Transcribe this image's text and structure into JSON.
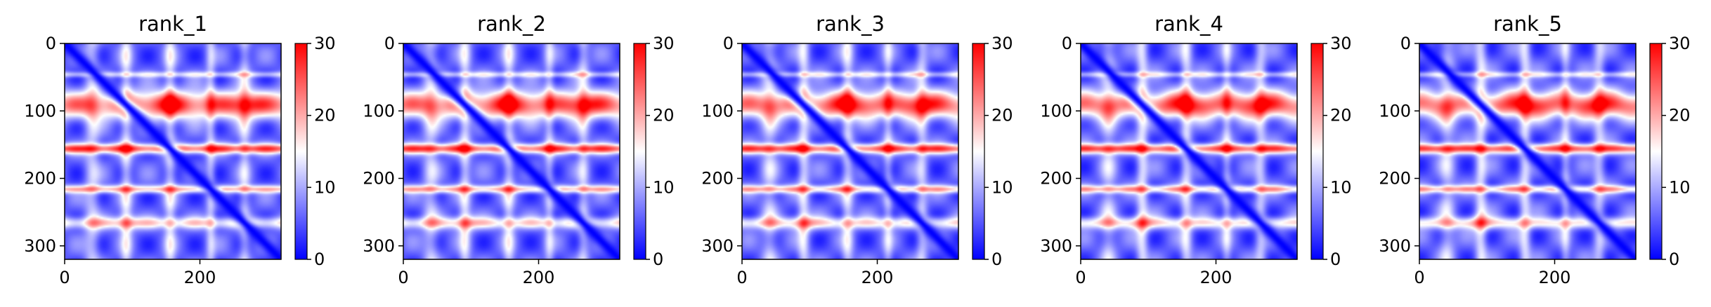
{
  "chart_data": [
    {
      "type": "heatmap",
      "title": "rank_1",
      "xlim": [
        0,
        320
      ],
      "ylim": [
        320,
        0
      ],
      "xticks": [
        0,
        200
      ],
      "yticks": [
        0,
        100,
        200,
        300
      ],
      "colorbar": {
        "colormap": "bwr",
        "min": 0,
        "max": 30,
        "ticks": [
          0,
          10,
          20,
          30
        ]
      },
      "description_of_pattern": {
        "diagonal": "low (blue)",
        "high_rows": [
          90,
          155,
          215,
          265
        ],
        "high_cols": [
          40,
          90,
          155,
          215,
          265
        ]
      }
    },
    {
      "type": "heatmap",
      "title": "rank_2",
      "xlim": [
        0,
        320
      ],
      "ylim": [
        320,
        0
      ],
      "xticks": [
        0,
        200
      ],
      "yticks": [
        0,
        100,
        200,
        300
      ],
      "colorbar": {
        "colormap": "bwr",
        "min": 0,
        "max": 30,
        "ticks": [
          0,
          10,
          20,
          30
        ]
      }
    },
    {
      "type": "heatmap",
      "title": "rank_3",
      "xlim": [
        0,
        320
      ],
      "ylim": [
        320,
        0
      ],
      "xticks": [
        0,
        200
      ],
      "yticks": [
        0,
        100,
        200,
        300
      ],
      "colorbar": {
        "colormap": "bwr",
        "min": 0,
        "max": 30,
        "ticks": [
          0,
          10,
          20,
          30
        ]
      }
    },
    {
      "type": "heatmap",
      "title": "rank_4",
      "xlim": [
        0,
        320
      ],
      "ylim": [
        320,
        0
      ],
      "xticks": [
        0,
        200
      ],
      "yticks": [
        0,
        100,
        200,
        300
      ],
      "colorbar": {
        "colormap": "bwr",
        "min": 0,
        "max": 30,
        "ticks": [
          0,
          10,
          20,
          30
        ]
      }
    },
    {
      "type": "heatmap",
      "title": "rank_5",
      "xlim": [
        0,
        320
      ],
      "ylim": [
        320,
        0
      ],
      "xticks": [
        0,
        200
      ],
      "yticks": [
        0,
        100,
        200,
        300
      ],
      "colorbar": {
        "colormap": "bwr",
        "min": 0,
        "max": 30,
        "ticks": [
          0,
          10,
          20,
          30
        ]
      }
    }
  ],
  "colors": {
    "low": "#0000ff",
    "mid": "#ffffff",
    "high": "#ff0000"
  }
}
